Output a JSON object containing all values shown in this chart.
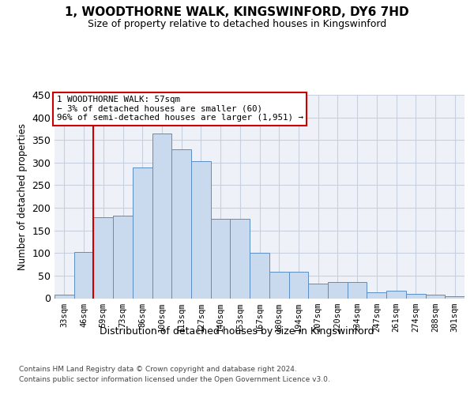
{
  "title": "1, WOODTHORNE WALK, KINGSWINFORD, DY6 7HD",
  "subtitle": "Size of property relative to detached houses in Kingswinford",
  "xlabel": "Distribution of detached houses by size in Kingswinford",
  "ylabel": "Number of detached properties",
  "footer_line1": "Contains HM Land Registry data © Crown copyright and database right 2024.",
  "footer_line2": "Contains public sector information licensed under the Open Government Licence v3.0.",
  "categories": [
    "33sqm",
    "46sqm",
    "59sqm",
    "73sqm",
    "86sqm",
    "100sqm",
    "113sqm",
    "127sqm",
    "140sqm",
    "153sqm",
    "167sqm",
    "180sqm",
    "194sqm",
    "207sqm",
    "220sqm",
    "234sqm",
    "247sqm",
    "261sqm",
    "274sqm",
    "288sqm",
    "301sqm"
  ],
  "values": [
    8,
    103,
    180,
    182,
    290,
    365,
    330,
    303,
    176,
    176,
    100,
    58,
    58,
    32,
    35,
    35,
    13,
    16,
    9,
    7,
    5
  ],
  "bar_color": "#c9d9ee",
  "bar_edge_color": "#5a8ec5",
  "grid_color": "#c8d0de",
  "background_color": "#eef2f8",
  "annotation_text": "1 WOODTHORNE WALK: 57sqm\n← 3% of detached houses are smaller (60)\n96% of semi-detached houses are larger (1,951) →",
  "annotation_box_facecolor": "#ffffff",
  "annotation_border_color": "#cc0000",
  "property_line_color": "#cc0000",
  "property_line_x": 1.5,
  "ylim": [
    0,
    450
  ],
  "yticks": [
    0,
    50,
    100,
    150,
    200,
    250,
    300,
    350,
    400,
    450
  ]
}
